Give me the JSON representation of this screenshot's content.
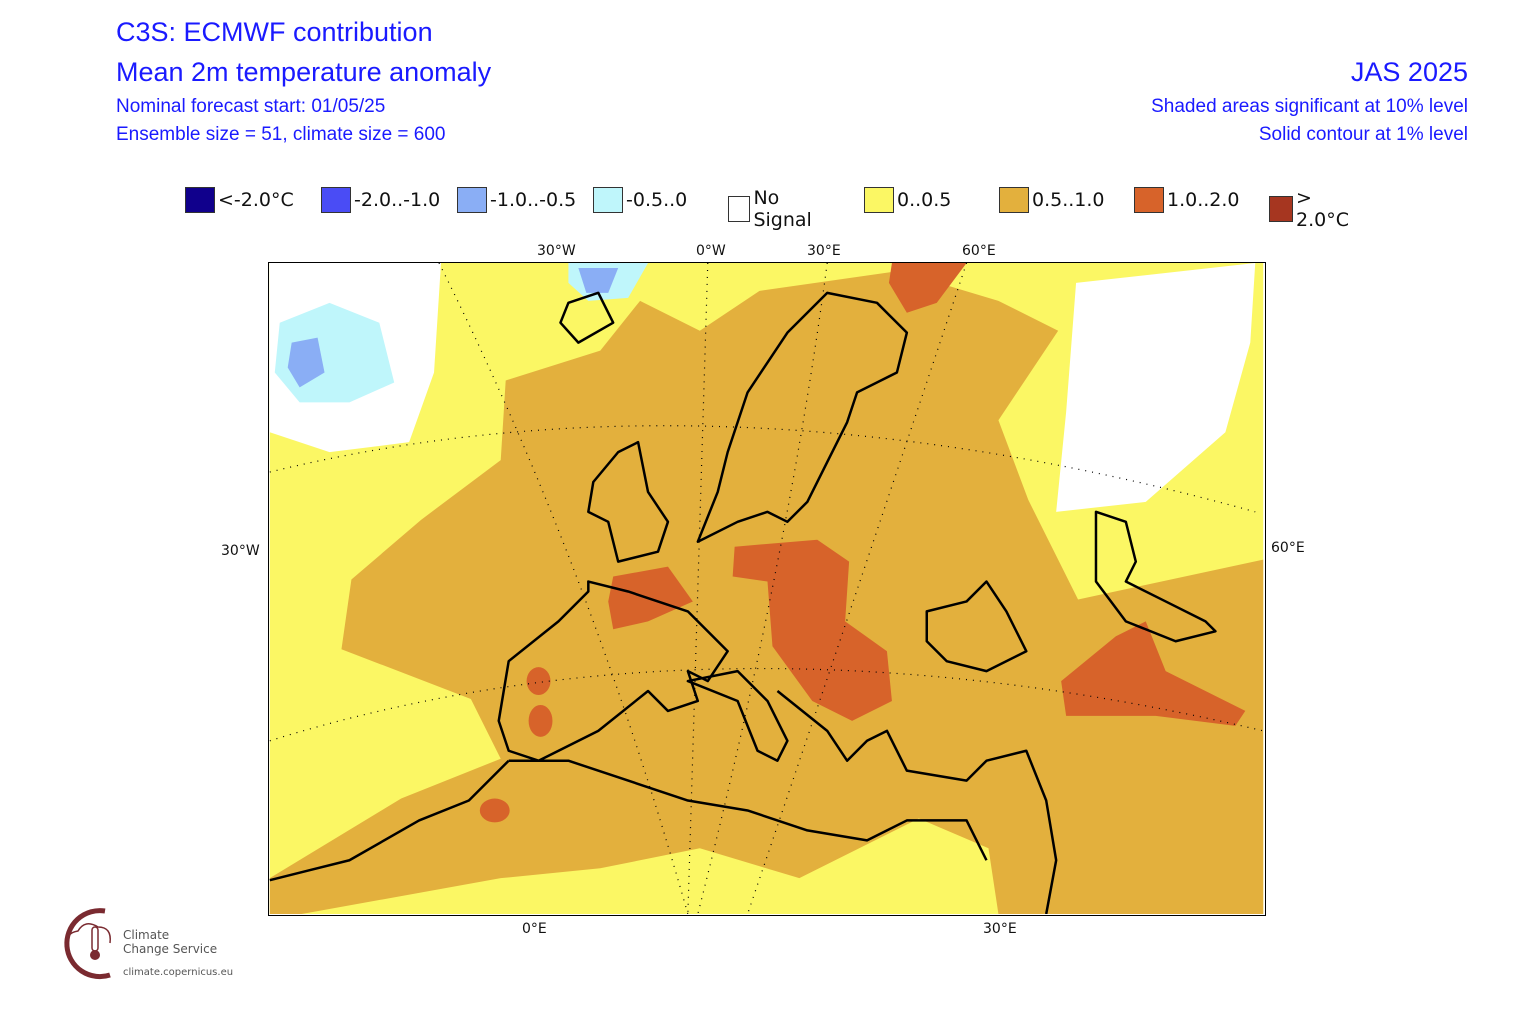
{
  "header": {
    "title": "C3S: ECMWF contribution",
    "subtitle": "Mean 2m temperature anomaly",
    "forecast_start": "Nominal forecast start: 01/05/25",
    "ensemble": "Ensemble size = 51, climate size = 600",
    "period": "JAS 2025",
    "significance": "Shaded areas significant at 10% level",
    "contour": "Solid contour at 1% level"
  },
  "legend": [
    {
      "label": "<-2.0°C",
      "color": "#10008c"
    },
    {
      "label": "-2.0..-1.0",
      "color": "#4a4cf5"
    },
    {
      "label": "-1.0..-0.5",
      "color": "#8aaef5"
    },
    {
      "label": "-0.5..0",
      "color": "#bff6fb"
    },
    {
      "label": "No Signal",
      "color": "#ffffff"
    },
    {
      "label": "0..0.5",
      "color": "#fbf764"
    },
    {
      "label": "0.5..1.0",
      "color": "#e3b03d"
    },
    {
      "label": "1.0..2.0",
      "color": "#d7632a"
    },
    {
      "label": "> 2.0°C",
      "color": "#a63620"
    }
  ],
  "axes": {
    "top": [
      "30°W",
      "0°W",
      "30°E",
      "60°E"
    ],
    "left": "30°W",
    "right": "60°E",
    "bottom": [
      "0°E",
      "30°E"
    ]
  },
  "logo": {
    "line1": "Climate",
    "line2": "Change Service",
    "url": "climate.copernicus.eu"
  }
}
